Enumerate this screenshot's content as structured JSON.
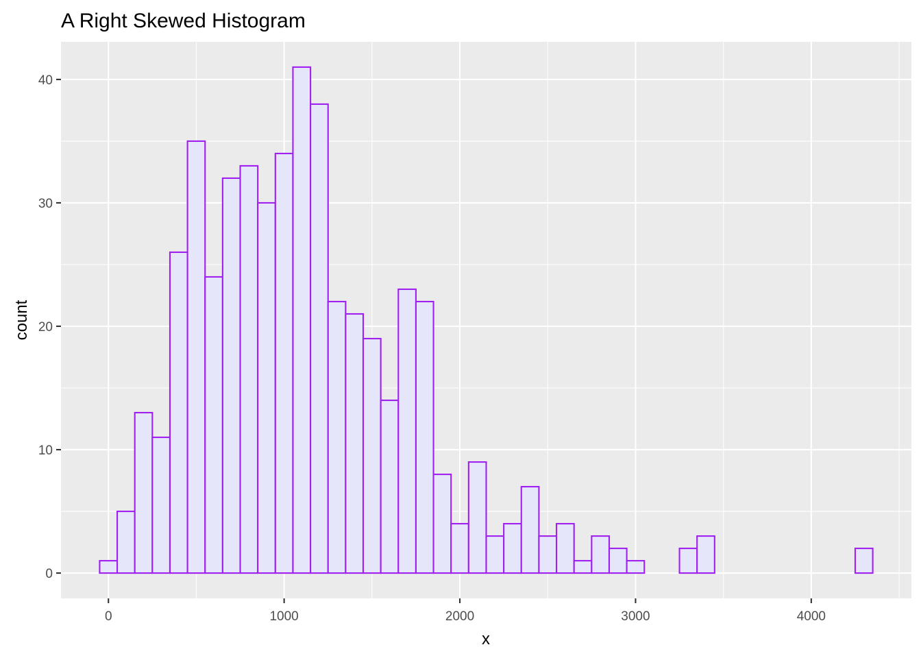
{
  "chart_data": {
    "type": "bar",
    "subtype": "histogram",
    "title": "A Right Skewed Histogram",
    "xlabel": "x",
    "ylabel": "count",
    "bin_width": 100,
    "bin_start": -50,
    "counts": [
      1,
      5,
      13,
      11,
      26,
      35,
      24,
      32,
      33,
      30,
      34,
      41,
      38,
      22,
      21,
      19,
      14,
      23,
      22,
      8,
      4,
      9,
      3,
      4,
      7,
      3,
      4,
      1,
      3,
      2,
      1,
      0,
      0,
      2,
      3,
      0,
      0,
      0,
      0,
      0,
      0,
      0,
      0,
      2
    ],
    "xlim": [
      -270,
      4570
    ],
    "ylim": [
      -2.05,
      43.05
    ],
    "x_ticks": [
      0,
      1000,
      2000,
      3000,
      4000
    ],
    "x_tick_labels": [
      "0",
      "1000",
      "2000",
      "3000",
      "4000"
    ],
    "y_ticks": [
      0,
      10,
      20,
      30,
      40
    ],
    "y_tick_labels": [
      "0",
      "10",
      "20",
      "30",
      "40"
    ],
    "grid": true,
    "legend": "none",
    "colors": {
      "bar_fill": "#E6E6FA",
      "bar_outline": "#A020F0",
      "panel_background": "#EBEBEB",
      "grid": "#FFFFFF"
    }
  }
}
